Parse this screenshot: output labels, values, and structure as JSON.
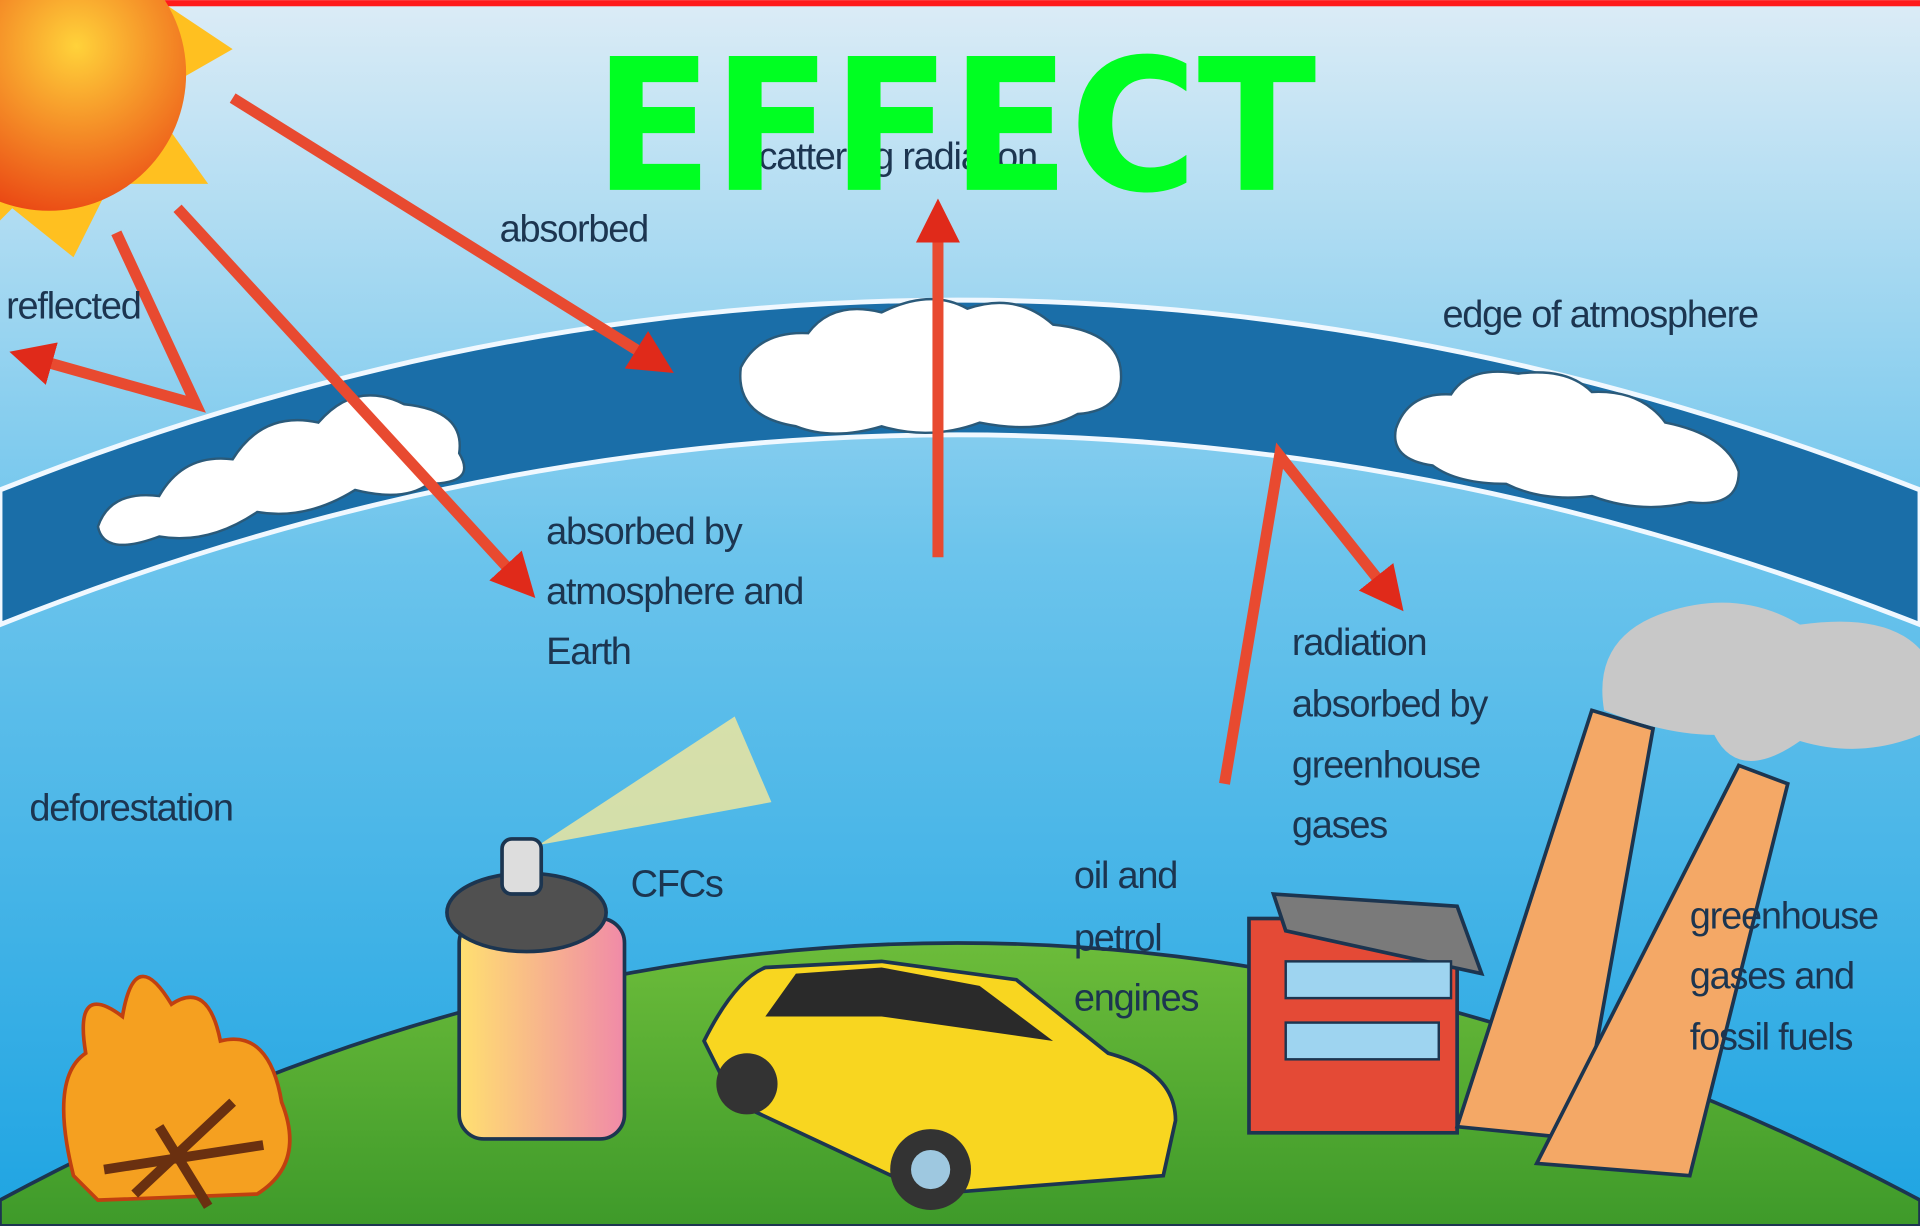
{
  "title": "EFFECT",
  "labels": {
    "scattering": {
      "lines": [
        "scattering radiation"
      ]
    },
    "absorbed": {
      "lines": [
        "absorbed"
      ]
    },
    "reflected": {
      "lines": [
        "reflected"
      ]
    },
    "edge": {
      "lines": [
        "edge of atmosphere"
      ]
    },
    "absorbed_earth": {
      "lines": [
        "absorbed by",
        "atmosphere and",
        "Earth"
      ]
    },
    "radiation": {
      "lines": [
        "radiation",
        "absorbed by",
        "greenhouse",
        "gases"
      ]
    },
    "deforestation": {
      "lines": [
        "deforestation"
      ]
    },
    "cfcs": {
      "lines": [
        "CFCs"
      ]
    },
    "engines": {
      "lines": [
        "oil and",
        "petrol",
        "engines"
      ]
    },
    "fossil": {
      "lines": [
        "greenhouse",
        "gases and",
        "fossil fuels"
      ]
    }
  }
}
